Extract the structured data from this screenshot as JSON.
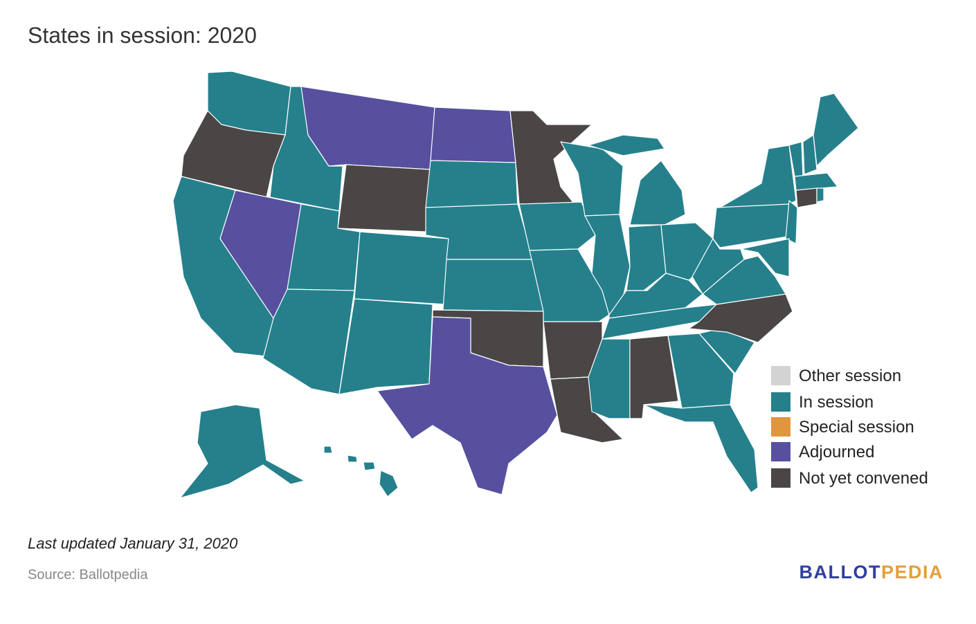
{
  "title": "States in session: 2020",
  "legend": {
    "items": [
      {
        "label": "Other session",
        "color": "#d3d3d3"
      },
      {
        "label": "In session",
        "color": "#25808c"
      },
      {
        "label": "Special session",
        "color": "#e0963f"
      },
      {
        "label": "Adjourned",
        "color": "#56509f"
      },
      {
        "label": "Not yet convened",
        "color": "#4a4646"
      }
    ]
  },
  "footer": {
    "updated": "Last updated January 31, 2020",
    "source": "Source: Ballotpedia",
    "logo": {
      "first": "BALLOT",
      "second": "PEDIA"
    }
  }
}
